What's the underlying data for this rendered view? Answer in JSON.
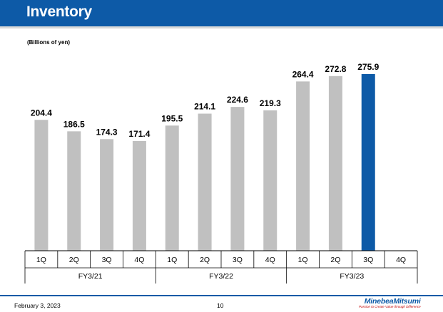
{
  "header": {
    "title": "Inventory"
  },
  "unit_label": "(Billions of yen)",
  "chart_data": {
    "type": "bar",
    "title": "Inventory",
    "ylabel": "Billions of yen",
    "ylim": [
      0,
      300
    ],
    "categories": [
      "1Q",
      "2Q",
      "3Q",
      "4Q",
      "1Q",
      "2Q",
      "3Q",
      "4Q",
      "1Q",
      "2Q",
      "3Q",
      "4Q"
    ],
    "groups": [
      {
        "label": "FY3/21",
        "categories": [
          "1Q",
          "2Q",
          "3Q",
          "4Q"
        ]
      },
      {
        "label": "FY3/22",
        "categories": [
          "1Q",
          "2Q",
          "3Q",
          "4Q"
        ]
      },
      {
        "label": "FY3/23",
        "categories": [
          "1Q",
          "2Q",
          "3Q",
          "4Q"
        ]
      }
    ],
    "values": [
      204.4,
      186.5,
      174.3,
      171.4,
      195.5,
      214.1,
      224.6,
      219.3,
      264.4,
      272.8,
      275.9,
      null
    ],
    "value_labels": [
      "204.4",
      "186.5",
      "174.3",
      "171.4",
      "195.5",
      "214.1",
      "224.6",
      "219.3",
      "264.4",
      "272.8",
      "275.9",
      ""
    ],
    "highlight_index": 10,
    "colors": {
      "bar": "#c0c0c0",
      "highlight": "#0d5aa7"
    }
  },
  "footer": {
    "date": "February 3, 2023",
    "page": "10",
    "logo_name": "MinebeaMitsumi",
    "logo_tagline": "Passion to Create Value through Difference"
  }
}
